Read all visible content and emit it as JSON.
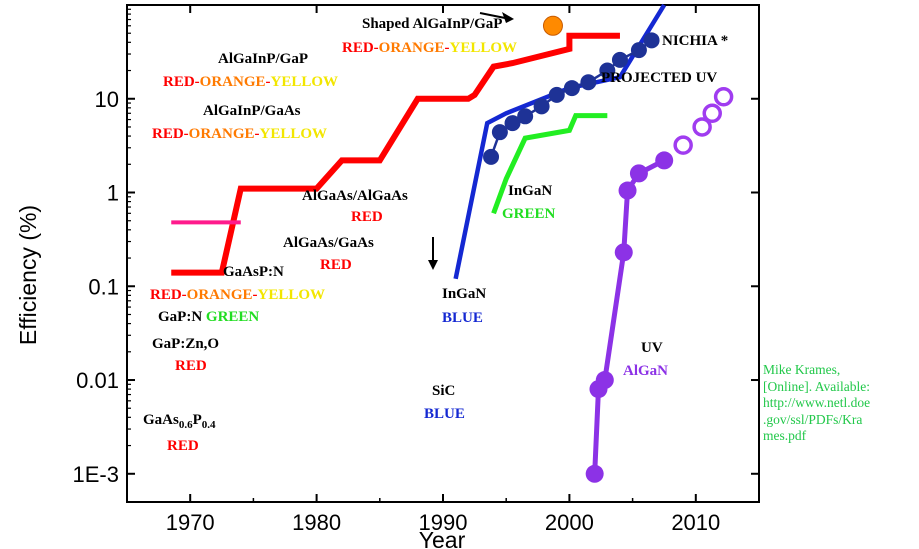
{
  "chart_data": {
    "type": "line",
    "title": "",
    "xlabel": "Year",
    "ylabel": "Efficiency (%)",
    "xlim": [
      1965,
      2015
    ],
    "ylim": [
      0.0005,
      100
    ],
    "y_scale": "log",
    "grid": false,
    "x_ticks": [
      1970,
      1980,
      1990,
      2000,
      2010
    ],
    "x_tick_labels": [
      "1970",
      "1980",
      "1990",
      "2000",
      "2010"
    ],
    "y_ticks": [
      0.001,
      0.01,
      0.1,
      1,
      10
    ],
    "y_tick_labels": [
      "1E-3",
      "0.01",
      "0.1",
      "1",
      "10"
    ],
    "series": [
      {
        "color": "#ff0000",
        "x": [
          1968.5,
          1972.5,
          1974,
          1980,
          1982,
          1985,
          1988,
          1992,
          1992.5,
          1994,
          1995.5,
          2000,
          2000,
          2004
        ],
        "y": [
          0.14,
          0.14,
          1.1,
          1.1,
          2.2,
          2.2,
          10,
          10,
          11,
          22,
          24,
          34,
          47,
          47
        ]
      },
      {
        "color": "#ff1a8c",
        "x": [
          1968.5,
          1974
        ],
        "y": [
          0.48,
          0.48
        ]
      },
      {
        "color": "#1428d2",
        "x": [
          1991,
          1993.5,
          1995,
          2000,
          2004,
          2007.5
        ],
        "y": [
          0.12,
          5.5,
          7,
          13,
          17,
          100
        ]
      },
      {
        "color": "#1e3296",
        "marker": "filled-circle",
        "x": [
          1993.8,
          1994.5,
          1995.5,
          1996.5,
          1997.8,
          1999,
          2000.2,
          2001.5,
          2003,
          2004,
          2005.5,
          2006.5
        ],
        "y": [
          2.4,
          4.4,
          5.5,
          6.5,
          8.3,
          11,
          13,
          15,
          20,
          26,
          33,
          42
        ]
      },
      {
        "color": "#22ee22",
        "x": [
          1994,
          1995,
          1996.5,
          2000,
          2000.5,
          2003
        ],
        "y": [
          0.6,
          1.4,
          3.8,
          4.6,
          6.6,
          6.6
        ]
      },
      {
        "color": "#8c32e6",
        "marker": "filled-circle",
        "x": [
          2002,
          2002.3,
          2002.8,
          2004.3,
          2004.6,
          2005.5,
          2007.5
        ],
        "y": [
          0.001,
          0.008,
          0.01,
          0.23,
          1.05,
          1.6,
          2.2
        ]
      },
      {
        "color": "#a03cf0",
        "marker": "open-circle",
        "x": [
          2009,
          2010.5,
          2011.3,
          2012.2
        ],
        "y": [
          3.2,
          5,
          7,
          10.5
        ]
      },
      {
        "color": "#ff8a00",
        "marker": "filled-circle",
        "x": [
          1998.7
        ],
        "y": [
          60
        ]
      }
    ],
    "annotations": {
      "shaped_algainp": {
        "text": "Shaped AlGaInP/GaP",
        "color": "#000000"
      },
      "shaped_colors": [
        {
          "text": "RED",
          "color": "#ff0000"
        },
        {
          "text": "-",
          "color": "#ff0000"
        },
        {
          "text": "ORANGE",
          "color": "#ff7a00"
        },
        {
          "text": "-",
          "color": "#ff0000"
        },
        {
          "text": "YELLOW",
          "color": "#f2e600"
        }
      ],
      "nichia": {
        "text": "NICHIA *",
        "color": "#000000"
      },
      "projected_uv": {
        "text": "PROJECTED UV",
        "color": "#000000"
      },
      "algainp_gap": {
        "text": "AlGaInP/GaP",
        "color": "#000000"
      },
      "algainp_gap_colors": [
        {
          "text": "RED",
          "color": "#ff0000"
        },
        {
          "text": "-",
          "color": "#ff0000"
        },
        {
          "text": "ORANGE",
          "color": "#ff7a00"
        },
        {
          "text": "-",
          "color": "#ff0000"
        },
        {
          "text": "YELLOW",
          "color": "#f2e600"
        }
      ],
      "algainp_gaas": {
        "text": "AlGaInP/GaAs",
        "color": "#000000"
      },
      "algainp_gaas_colors": [
        {
          "text": "RED",
          "color": "#ff0000"
        },
        {
          "text": "-",
          "color": "#ff0000"
        },
        {
          "text": "ORANGE",
          "color": "#ff7a00"
        },
        {
          "text": "-",
          "color": "#ff0000"
        },
        {
          "text": "YELLOW",
          "color": "#f2e600"
        }
      ],
      "algaas_algaas": {
        "text": "AlGaAs/AlGaAs",
        "color": "#000000"
      },
      "algaas_algaas_red": {
        "text": "RED",
        "color": "#ff0000"
      },
      "algaas_gaas": {
        "text": "AlGaAs/GaAs",
        "color": "#000000"
      },
      "algaas_gaas_red": {
        "text": "RED",
        "color": "#ff0000"
      },
      "gaasp_n": {
        "text": "GaAsP:N",
        "color": "#000000"
      },
      "gaasp_n_colors": [
        {
          "text": "RED",
          "color": "#ff0000"
        },
        {
          "text": "-",
          "color": "#ff0000"
        },
        {
          "text": "ORANGE",
          "color": "#ff7a00"
        },
        {
          "text": "-",
          "color": "#ff0000"
        },
        {
          "text": "YELLOW",
          "color": "#f2e600"
        }
      ],
      "gap_n": {
        "text": "GaP:N",
        "color": "#000000"
      },
      "gap_n_green": {
        "text": "GREEN",
        "color": "#22dd22"
      },
      "gap_zno": {
        "text": "GaP:Zn,O",
        "color": "#000000"
      },
      "gap_zno_red": {
        "text": "RED",
        "color": "#ff0000"
      },
      "gaasp_main": {
        "text": "GaAs",
        "color": "#000000"
      },
      "gaasp_sub1": {
        "text": "0.6",
        "color": "#000000"
      },
      "gaasp_p": {
        "text": "P",
        "color": "#000000"
      },
      "gaasp_sub2": {
        "text": "0.4",
        "color": "#000000"
      },
      "gaasp_red": {
        "text": "RED",
        "color": "#ff0000"
      },
      "ingan_green": {
        "text": "InGaN",
        "color": "#000000"
      },
      "ingan_green_label": {
        "text": "GREEN",
        "color": "#22dd22"
      },
      "ingan_blue": {
        "text": "InGaN",
        "color": "#000000"
      },
      "ingan_blue_label": {
        "text": "BLUE",
        "color": "#1428d2"
      },
      "sic": {
        "text": "SiC",
        "color": "#000000"
      },
      "sic_blue": {
        "text": "BLUE",
        "color": "#1428d2"
      },
      "uv": {
        "text": "UV",
        "color": "#000000"
      },
      "uv_algan": {
        "text": "AlGaN",
        "color": "#8c32e6"
      }
    }
  },
  "citation": {
    "color": "#22c84a",
    "lines": [
      "Mike Krames,",
      "[Online]. Available:",
      "http://www.netl.doe",
      ".gov/ssl/PDFs/Kra",
      "mes.pdf"
    ]
  }
}
